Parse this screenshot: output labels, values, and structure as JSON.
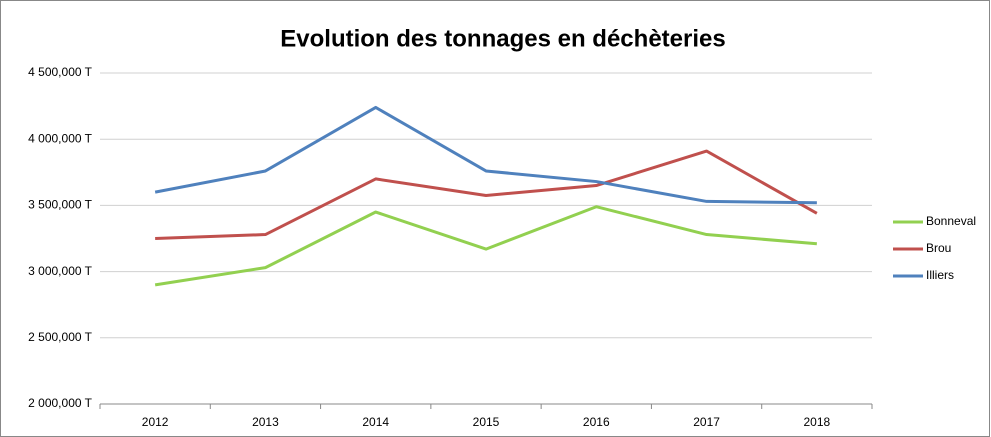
{
  "chart_data": {
    "type": "line",
    "title": "Evolution des tonnages en déchèteries",
    "categories": [
      "2012",
      "2013",
      "2014",
      "2015",
      "2016",
      "2017",
      "2018"
    ],
    "series": [
      {
        "name": "Bonneval",
        "color": "#92d050",
        "values": [
          2900,
          3030,
          3450,
          3170,
          3490,
          3280,
          3210
        ]
      },
      {
        "name": "Brou",
        "color": "#c0504d",
        "values": [
          3250,
          3280,
          3700,
          3575,
          3650,
          3910,
          3440
        ]
      },
      {
        "name": "Illiers",
        "color": "#4f81bd",
        "values": [
          3600,
          3760,
          4240,
          3760,
          3680,
          3530,
          3520
        ]
      }
    ],
    "ylim": [
      2000,
      4500
    ],
    "yticks": [
      {
        "value": 2000,
        "label": "2 000,000 T"
      },
      {
        "value": 2500,
        "label": "2 500,000 T"
      },
      {
        "value": 3000,
        "label": "3 000,000 T"
      },
      {
        "value": 3500,
        "label": "3 500,000 T"
      },
      {
        "value": 4000,
        "label": "4 000,000 T"
      },
      {
        "value": 4500,
        "label": "4 500,000 T"
      }
    ],
    "grid": true,
    "legend": "right"
  }
}
